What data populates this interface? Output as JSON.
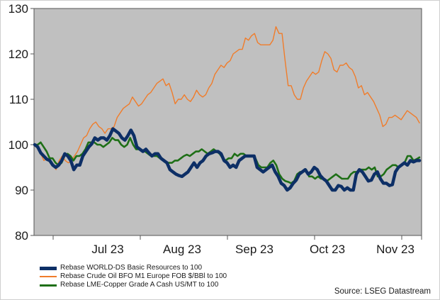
{
  "chart_data": {
    "type": "line",
    "x_ticks": [
      "Jul 23",
      "Aug 23",
      "Sep 23",
      "Oct 23",
      "Nov 23"
    ],
    "ylim": [
      80,
      130
    ],
    "y_ticks": [
      80,
      90,
      100,
      110,
      120,
      130
    ],
    "grid": false,
    "legend_placement": "bottom-left",
    "source": "Source: LSEG Datastream",
    "series": [
      {
        "name": "Rebase WORLD-DS Basic Resources to 100",
        "color": "#0d2f66",
        "values": [
          100,
          99.5,
          98.2,
          97.5,
          96.8,
          96.5,
          95.5,
          95,
          95.5,
          96.5,
          98,
          97.5,
          96.5,
          94.5,
          95.5,
          95.5,
          97.5,
          98.5,
          99.5,
          100.2,
          101.5,
          101,
          101.5,
          101.5,
          101,
          102,
          103.5,
          103,
          102.5,
          101.5,
          101,
          102,
          103.2,
          102,
          99.5,
          99,
          98.5,
          99,
          98.2,
          97.5,
          98,
          98,
          97,
          96.5,
          96,
          94.5,
          94,
          93.5,
          93.2,
          93,
          93.5,
          94,
          95,
          96,
          95,
          96,
          96.5,
          97.5,
          98,
          98.2,
          98.5,
          98.5,
          98,
          96.5,
          96,
          95,
          95.5,
          95,
          96.5,
          97,
          97.5,
          97.5,
          97.5,
          97.5,
          95,
          94.5,
          94,
          94.5,
          95,
          95.5,
          94,
          93,
          91.5,
          91,
          90,
          90.5,
          91.5,
          92.2,
          93.5,
          94,
          94.5,
          93.5,
          94,
          95,
          94.5,
          93.2,
          92.5,
          92,
          91,
          90,
          90,
          91,
          90.8,
          90,
          90.5,
          90,
          90,
          93.5,
          94.5,
          94,
          93,
          92,
          92.2,
          93.5,
          94,
          92.5,
          91.5,
          91.5,
          91,
          91.2,
          94,
          95,
          95.5,
          96,
          95.5,
          96.5,
          96.2,
          96.5,
          96.5
        ]
      },
      {
        "name": "Rebase Crude Oil BFO M1 Europe FOB $/BBl to 100",
        "color": "#f07c2a",
        "values": [
          100,
          99,
          98,
          96.5,
          97,
          96,
          95.5,
          94.5,
          96.5,
          97.5,
          96.5,
          96,
          96.5,
          97.5,
          98.5,
          100,
          101.5,
          102,
          103.5,
          104.5,
          105,
          104,
          103.5,
          102.5,
          103.5,
          103.5,
          104,
          106,
          107,
          108,
          108.5,
          109,
          110.5,
          109.5,
          108.5,
          109,
          110,
          111,
          111.5,
          112.5,
          113.5,
          114,
          114.5,
          113,
          113.5,
          111.5,
          109,
          110,
          110,
          111,
          110,
          109.5,
          110.5,
          112,
          111,
          110.5,
          111,
          112.5,
          113.5,
          115.5,
          116.5,
          117.5,
          117,
          118,
          118.5,
          120,
          120.5,
          121,
          121,
          123.5,
          123,
          124,
          124.5,
          122.5,
          122,
          122,
          122,
          122,
          123,
          126,
          124.5,
          124.5,
          118.5,
          113,
          113,
          111,
          110,
          110,
          112.5,
          114,
          115,
          116,
          115.5,
          116,
          118.5,
          120.5,
          120,
          119,
          116.5,
          116,
          117.5,
          117.5,
          118,
          117,
          116.5,
          115,
          112.5,
          113,
          111,
          111.5,
          110.5,
          109.5,
          108,
          106.5,
          104,
          104.5,
          106,
          106,
          106.5,
          106,
          105.5,
          106.5,
          107.5,
          107,
          106.5,
          106,
          104.8
        ]
      },
      {
        "name": "Rebase LME-Copper Grade A Cash US/MT to 100",
        "color": "#1e6f16",
        "values": [
          100,
          100,
          100.5,
          99.5,
          98.5,
          97,
          97,
          96,
          95.5,
          96,
          97.5,
          98,
          97.5,
          96.5,
          97.5,
          97.5,
          98,
          99,
          100.5,
          100.5,
          100.5,
          100,
          100,
          99.5,
          100,
          100.5,
          101.5,
          101,
          101,
          100,
          99.5,
          100,
          101.5,
          100,
          99,
          99,
          98.5,
          98.5,
          98,
          97.5,
          97.5,
          97.5,
          97,
          96.5,
          96,
          96,
          96,
          96.5,
          96.5,
          97,
          97.5,
          97.8,
          97.5,
          98,
          98.5,
          98.5,
          99,
          98.5,
          98,
          98.5,
          99,
          98.5,
          98,
          97,
          96.5,
          97,
          97,
          98,
          97.5,
          98,
          98,
          97.5,
          97.5,
          97.5,
          97,
          95.5,
          95,
          95,
          95,
          96,
          96.5,
          95.5,
          93.5,
          92.5,
          92,
          91.8,
          91.5,
          92,
          93.5,
          94,
          94,
          94.5,
          93,
          93,
          92.5,
          93,
          92.5,
          92.5,
          92,
          92.5,
          93,
          93.5,
          93,
          92.5,
          92.5,
          92.5,
          93.5,
          94,
          94,
          94.5,
          94.5,
          94.5,
          95,
          94.5,
          95,
          93,
          93,
          93.5,
          94.5,
          95,
          95.5,
          95.5,
          95,
          95.5,
          96,
          97.5,
          97.5,
          96.5,
          96.8,
          97.2
        ]
      }
    ]
  }
}
